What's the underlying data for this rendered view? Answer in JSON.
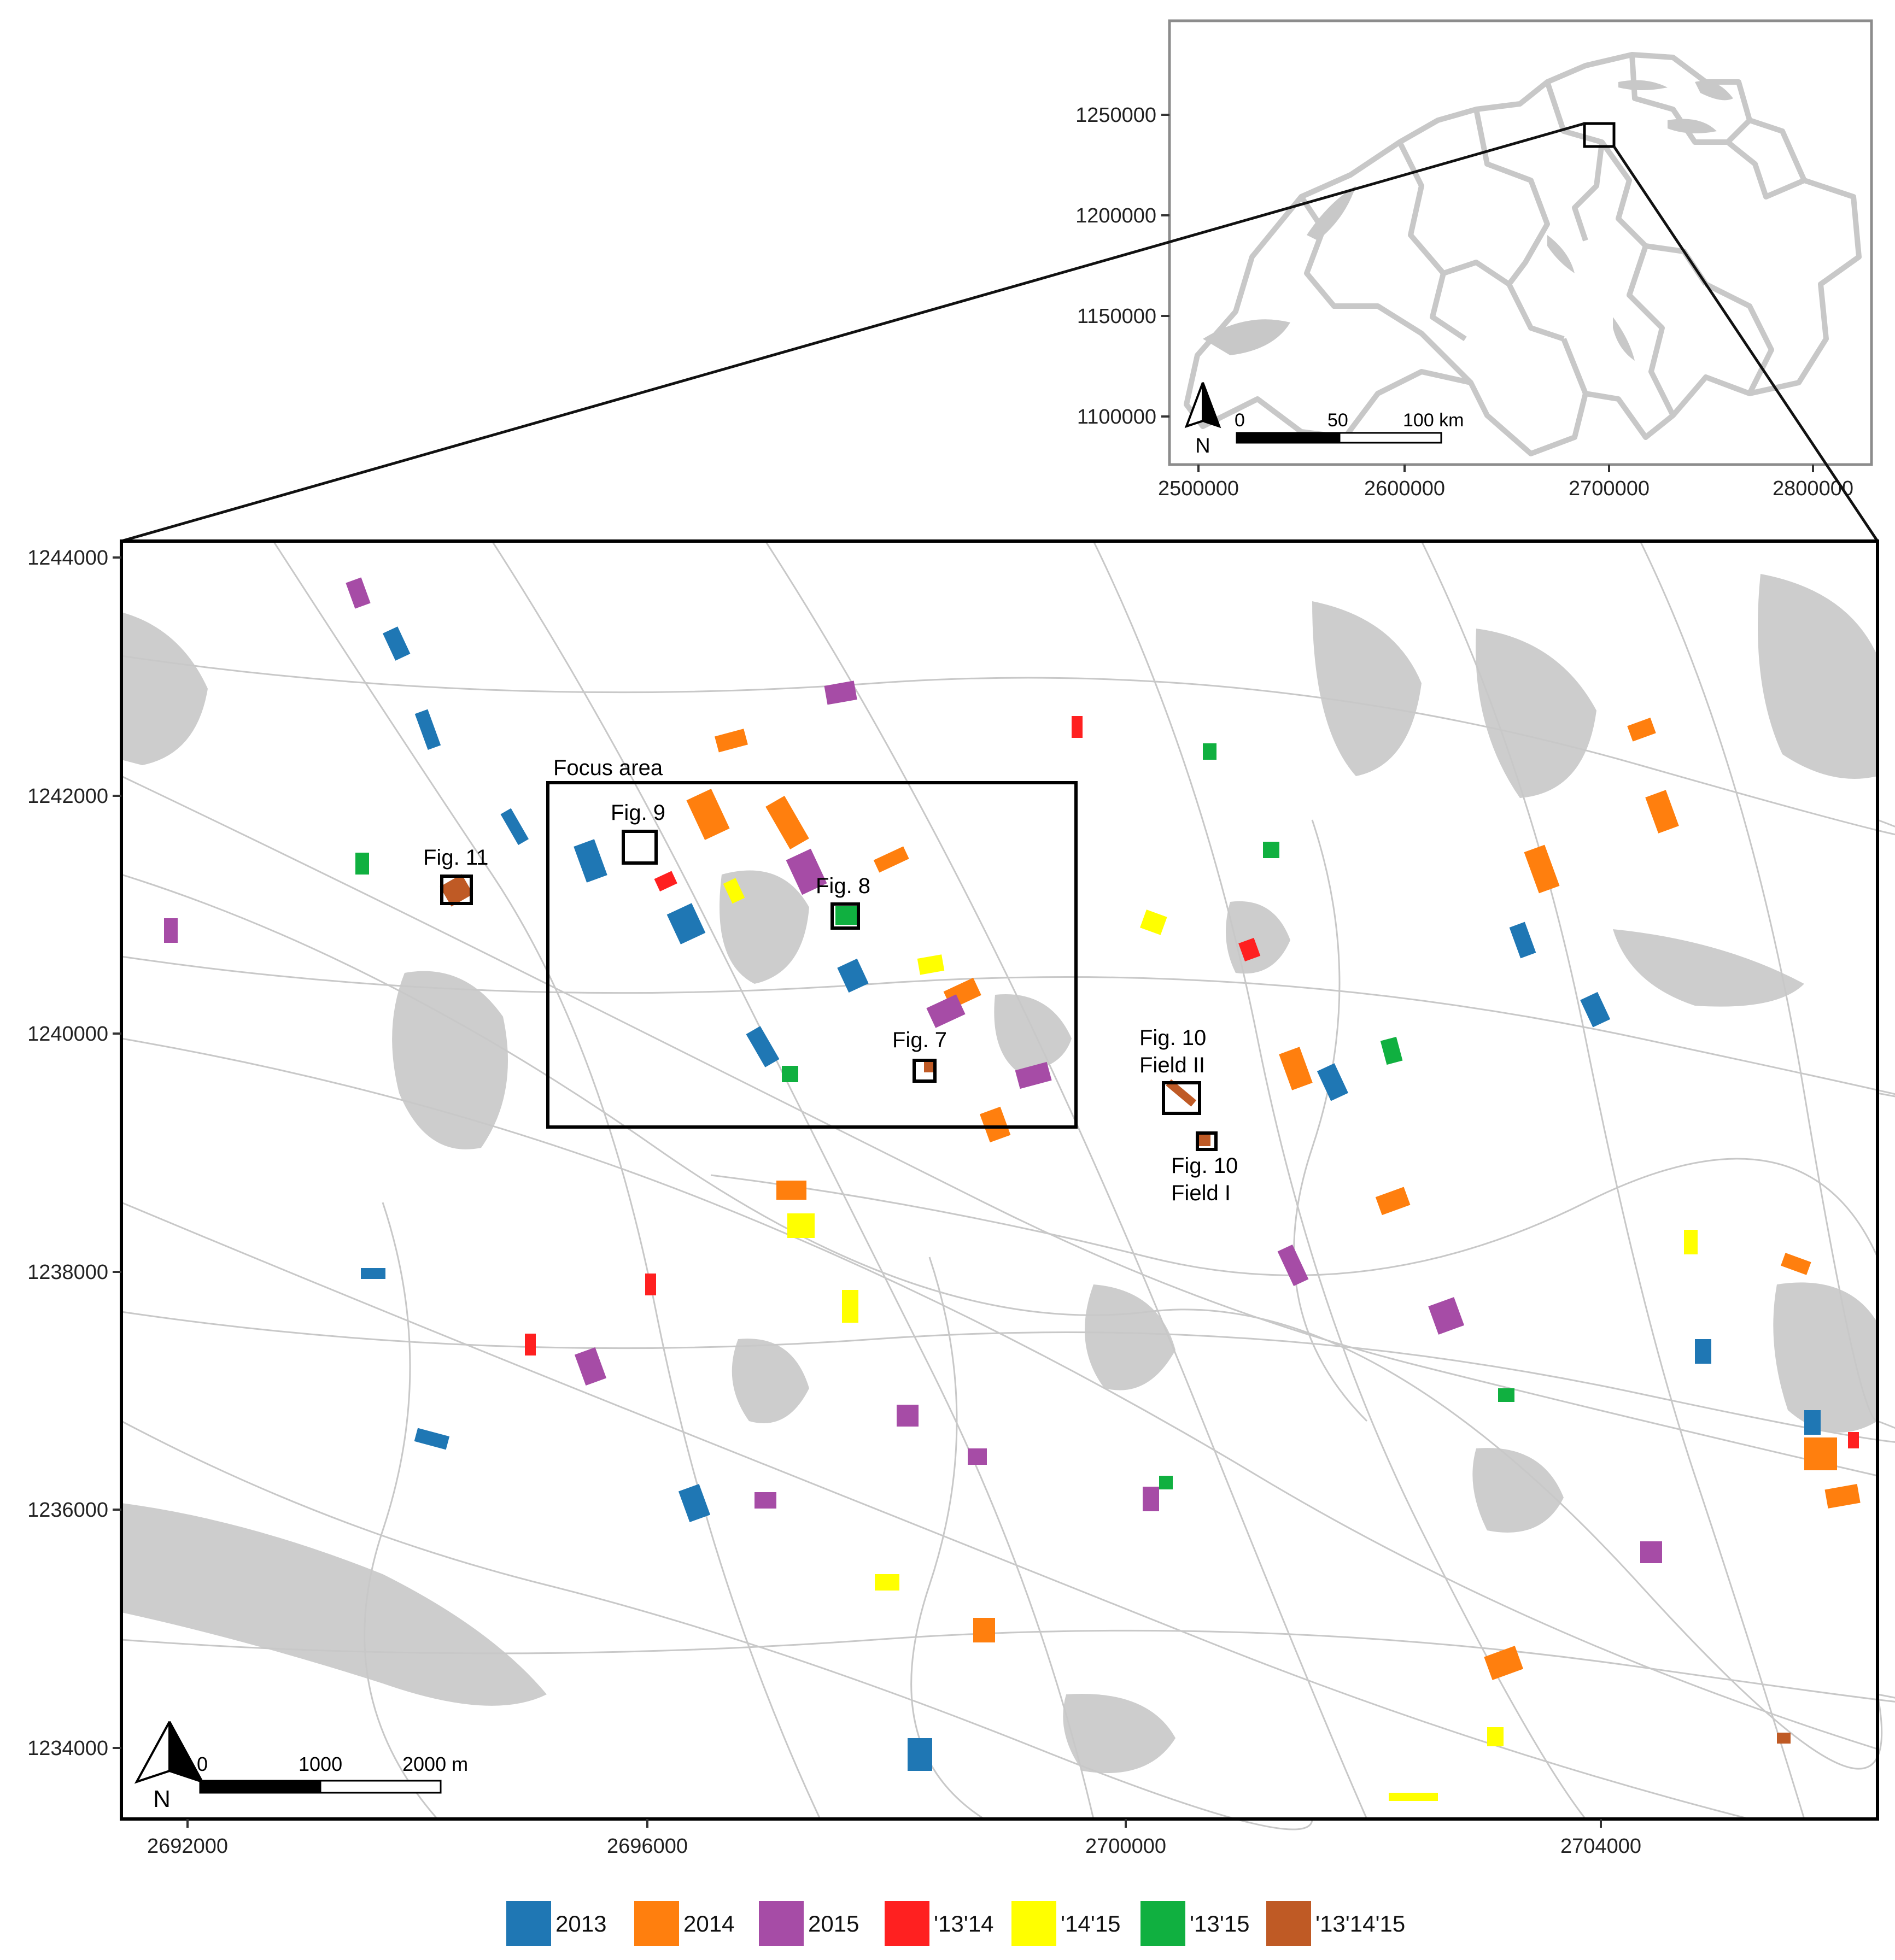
{
  "inset_map": {
    "y_ticks": [
      "1250000",
      "1200000",
      "1150000",
      "1100000"
    ],
    "x_ticks": [
      "2500000",
      "2600000",
      "2700000",
      "2800000"
    ],
    "scale_labels": [
      "0",
      "50",
      "100 km"
    ],
    "north_label": "N"
  },
  "main_map": {
    "y_ticks": [
      "1244000",
      "1242000",
      "1240000",
      "1238000",
      "1236000",
      "1234000"
    ],
    "x_ticks": [
      "2692000",
      "2696000",
      "2700000",
      "2704000"
    ],
    "scale_labels": [
      "0",
      "1000",
      "2000 m"
    ],
    "north_label": "N",
    "focus_area_label": "Focus area",
    "figure_boxes": [
      {
        "lines": [
          "Fig. 9"
        ]
      },
      {
        "lines": [
          "Fig. 8"
        ]
      },
      {
        "lines": [
          "Fig. 11"
        ]
      },
      {
        "lines": [
          "Fig. 7"
        ]
      },
      {
        "lines": [
          "Fig. 10",
          "Field II"
        ]
      },
      {
        "lines": [
          "Fig. 10",
          "Field I"
        ]
      }
    ]
  },
  "legend": [
    {
      "label": "2013",
      "color": "#1f77b4"
    },
    {
      "label": "2014",
      "color": "#ff7f0e"
    },
    {
      "label": "2015",
      "color": "#a64ca6"
    },
    {
      "label": "'13'14",
      "color": "#ff2020"
    },
    {
      "label": "'14'15",
      "color": "#ffff00"
    },
    {
      "label": "'13'15",
      "color": "#10b040"
    },
    {
      "label": "'13'14'15",
      "color": "#bf5a25"
    }
  ]
}
